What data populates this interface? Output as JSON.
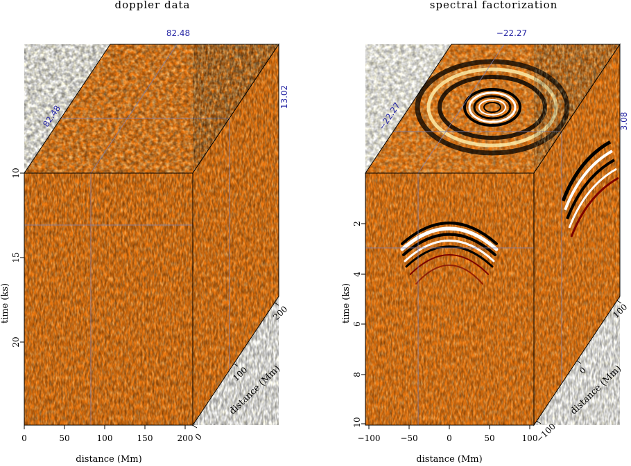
{
  "chart_data": [
    {
      "type": "heatmap",
      "title": "doppler data",
      "xlabel": "distance (Mm)",
      "ylabel": "time (ks)",
      "zlabel": "distance (Mm)",
      "xlim": [
        0,
        210
      ],
      "ylim": [
        10,
        25
      ],
      "zlim": [
        0,
        210
      ],
      "xticks": [
        "0",
        "50",
        "100",
        "150",
        "200"
      ],
      "yticks": [
        "10",
        "15",
        "20"
      ],
      "zticks": [
        "0",
        "100",
        "200"
      ],
      "slices": {
        "x": "82.48",
        "y": "82.48",
        "t": "13.02"
      },
      "colormap": [
        "#000000",
        "#7a0000",
        "#e02000",
        "#ff7a00",
        "#ffd000",
        "#ffffff"
      ],
      "pattern": "noise"
    },
    {
      "type": "heatmap",
      "title": "spectral factorization",
      "xlabel": "distance (Mm)",
      "ylabel": "time (ks)",
      "zlabel": "distance (Mm)",
      "xlim": [
        -105,
        105
      ],
      "ylim": [
        0,
        10
      ],
      "zlim": [
        -105,
        105
      ],
      "xticks": [
        "−100",
        "−50",
        "0",
        "50",
        "100"
      ],
      "yticks": [
        "2",
        "4",
        "6",
        "8",
        "10"
      ],
      "zticks": [
        "−100",
        "0",
        "100"
      ],
      "slices": {
        "x": "−22.27",
        "y": "−22.27",
        "t": "3.08"
      },
      "colormap": [
        "#000000",
        "#7a0000",
        "#e02000",
        "#ff7a00",
        "#ffd000",
        "#ffffff"
      ],
      "pattern": "hyperbola"
    }
  ]
}
